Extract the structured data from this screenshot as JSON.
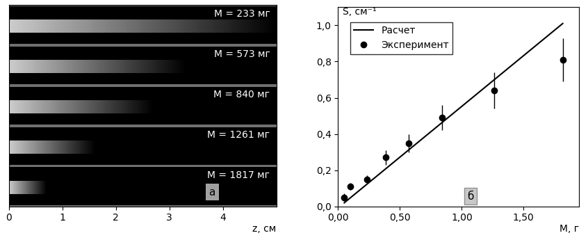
{
  "chart_data": [
    {
      "type": "strips",
      "panel_label": "а",
      "xlabel": "z, см",
      "xlim": [
        0,
        5.0
      ],
      "xticks": [
        0,
        1,
        2,
        3,
        4
      ],
      "tick_labels": "x",
      "categories": [
        "M = 233 мг",
        "M = 573 мг",
        "M = 840 мг",
        "M = 1261 мг",
        "M = 1817 мг"
      ],
      "glow_length": [
        5.0,
        3.3,
        2.7,
        1.6,
        0.7
      ]
    },
    {
      "type": "scatter",
      "panel_label": "б",
      "xlabel": "M, г",
      "ylabel": "S, см⁻¹",
      "xlim": [
        0,
        1.95
      ],
      "ylim": [
        0,
        1.1
      ],
      "xticks": [
        {
          "value": 0,
          "label": "0,00"
        },
        {
          "value": 0.5,
          "label": "0,50"
        },
        {
          "value": 1.0,
          "label": "1,00"
        },
        {
          "value": 1.5,
          "label": "1,50"
        }
      ],
      "yticks": [
        {
          "value": 0,
          "label": "0,0"
        },
        {
          "value": 0.2,
          "label": "0,2"
        },
        {
          "value": 0.4,
          "label": "0,4"
        },
        {
          "value": 0.6,
          "label": "0,6"
        },
        {
          "value": 0.8,
          "label": "0,8"
        },
        {
          "value": 1.0,
          "label": "1,0"
        }
      ],
      "legend": "upper left",
      "series": [
        {
          "name": "Расчет",
          "type": "line",
          "color": "#000000",
          "line_style": "solid",
          "x": [
            0.05,
            1.817
          ],
          "values": [
            0.02,
            1.01
          ]
        },
        {
          "name": "Эксперимент",
          "type": "scatter",
          "color": "#000000",
          "marker": "circle",
          "x": [
            0.05,
            0.1,
            0.233,
            0.385,
            0.573,
            0.84,
            1.261,
            1.817
          ],
          "values": [
            0.05,
            0.11,
            0.15,
            0.27,
            0.35,
            0.49,
            0.64,
            0.81
          ],
          "errors": [
            0.02,
            0.02,
            0.02,
            0.04,
            0.05,
            0.07,
            0.1,
            0.12
          ]
        }
      ]
    }
  ]
}
